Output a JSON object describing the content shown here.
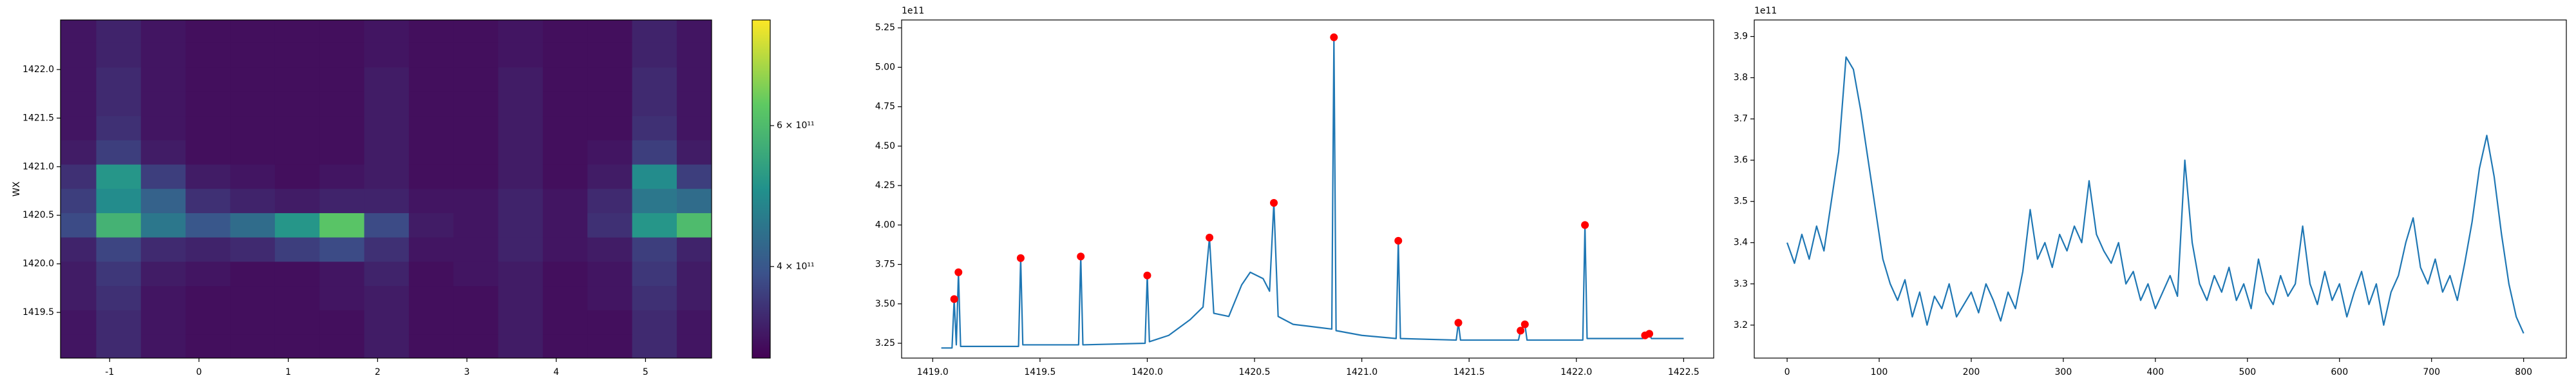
{
  "chart_data": [
    {
      "type": "heatmap",
      "ylabel": "WX",
      "cmap": "viridis",
      "xlim": [
        -1.55,
        5.74
      ],
      "ylim": [
        1419.03,
        1422.51
      ],
      "xticks": [
        -1,
        0,
        1,
        2,
        3,
        4,
        5
      ],
      "yticks": [
        1419.5,
        {
          "value": 1420,
          "label": "1420.0"
        },
        1420.5,
        {
          "value": 1421,
          "label": "1421.0"
        },
        1421.5,
        {
          "value": 1422,
          "label": "1422.0"
        }
      ],
      "x": [
        -1.4,
        -0.9,
        -0.4,
        0.1,
        0.6,
        1.1,
        1.6,
        2.1,
        2.6,
        3.1,
        3.6,
        4.1,
        4.6,
        5.1,
        5.6
      ],
      "y": [
        1419.15,
        1419.4,
        1419.65,
        1419.9,
        1420.15,
        1420.4,
        1420.65,
        1420.9,
        1421.15,
        1421.4,
        1421.65,
        1421.9,
        1422.15,
        1422.4
      ],
      "z": [
        [
          300000000000.0,
          330000000000.0,
          300000000000.0,
          290000000000.0,
          290000000000.0,
          290000000000.0,
          290000000000.0,
          310000000000.0,
          290000000000.0,
          290000000000.0,
          310000000000.0,
          290000000000.0,
          290000000000.0,
          330000000000.0,
          300000000000.0
        ],
        [
          300000000000.0,
          330000000000.0,
          300000000000.0,
          290000000000.0,
          290000000000.0,
          290000000000.0,
          290000000000.0,
          310000000000.0,
          290000000000.0,
          290000000000.0,
          310000000000.0,
          290000000000.0,
          290000000000.0,
          330000000000.0,
          300000000000.0
        ],
        [
          310000000000.0,
          340000000000.0,
          300000000000.0,
          290000000000.0,
          290000000000.0,
          290000000000.0,
          300000000000.0,
          310000000000.0,
          290000000000.0,
          290000000000.0,
          310000000000.0,
          290000000000.0,
          300000000000.0,
          340000000000.0,
          310000000000.0
        ],
        [
          310000000000.0,
          350000000000.0,
          310000000000.0,
          300000000000.0,
          290000000000.0,
          290000000000.0,
          300000000000.0,
          320000000000.0,
          290000000000.0,
          300000000000.0,
          310000000000.0,
          290000000000.0,
          300000000000.0,
          350000000000.0,
          310000000000.0
        ],
        [
          320000000000.0,
          370000000000.0,
          330000000000.0,
          320000000000.0,
          330000000000.0,
          360000000000.0,
          380000000000.0,
          340000000000.0,
          300000000000.0,
          300000000000.0,
          320000000000.0,
          300000000000.0,
          310000000000.0,
          360000000000.0,
          320000000000.0
        ],
        [
          380000000000.0,
          580000000000.0,
          460000000000.0,
          400000000000.0,
          440000000000.0,
          520000000000.0,
          620000000000.0,
          380000000000.0,
          310000000000.0,
          300000000000.0,
          320000000000.0,
          300000000000.0,
          340000000000.0,
          520000000000.0,
          600000000000.0
        ],
        [
          360000000000.0,
          500000000000.0,
          420000000000.0,
          340000000000.0,
          320000000000.0,
          310000000000.0,
          320000000000.0,
          320000000000.0,
          300000000000.0,
          300000000000.0,
          320000000000.0,
          300000000000.0,
          330000000000.0,
          460000000000.0,
          440000000000.0
        ],
        [
          340000000000.0,
          520000000000.0,
          360000000000.0,
          310000000000.0,
          300000000000.0,
          290000000000.0,
          300000000000.0,
          310000000000.0,
          290000000000.0,
          290000000000.0,
          310000000000.0,
          290000000000.0,
          310000000000.0,
          500000000000.0,
          360000000000.0
        ],
        [
          310000000000.0,
          360000000000.0,
          310000000000.0,
          290000000000.0,
          290000000000.0,
          290000000000.0,
          290000000000.0,
          310000000000.0,
          290000000000.0,
          290000000000.0,
          310000000000.0,
          290000000000.0,
          300000000000.0,
          360000000000.0,
          310000000000.0
        ],
        [
          300000000000.0,
          340000000000.0,
          300000000000.0,
          290000000000.0,
          290000000000.0,
          290000000000.0,
          290000000000.0,
          310000000000.0,
          290000000000.0,
          290000000000.0,
          310000000000.0,
          290000000000.0,
          290000000000.0,
          340000000000.0,
          300000000000.0
        ],
        [
          300000000000.0,
          330000000000.0,
          300000000000.0,
          290000000000.0,
          290000000000.0,
          290000000000.0,
          290000000000.0,
          310000000000.0,
          290000000000.0,
          290000000000.0,
          310000000000.0,
          290000000000.0,
          290000000000.0,
          330000000000.0,
          300000000000.0
        ],
        [
          300000000000.0,
          330000000000.0,
          300000000000.0,
          290000000000.0,
          290000000000.0,
          290000000000.0,
          290000000000.0,
          310000000000.0,
          290000000000.0,
          290000000000.0,
          310000000000.0,
          290000000000.0,
          290000000000.0,
          330000000000.0,
          300000000000.0
        ],
        [
          300000000000.0,
          320000000000.0,
          300000000000.0,
          290000000000.0,
          290000000000.0,
          290000000000.0,
          290000000000.0,
          300000000000.0,
          290000000000.0,
          290000000000.0,
          300000000000.0,
          290000000000.0,
          290000000000.0,
          320000000000.0,
          300000000000.0
        ],
        [
          300000000000.0,
          320000000000.0,
          300000000000.0,
          290000000000.0,
          290000000000.0,
          290000000000.0,
          290000000000.0,
          300000000000.0,
          290000000000.0,
          290000000000.0,
          300000000000.0,
          290000000000.0,
          290000000000.0,
          320000000000.0,
          300000000000.0
        ]
      ],
      "colorbar": {
        "clim": [
          270000000000.0,
          750000000000.0
        ],
        "ticks": [
          {
            "value": 400000000000.0,
            "label": "4 × 10¹¹"
          },
          {
            "value": 600000000000.0,
            "label": "6 × 10¹¹"
          }
        ]
      }
    },
    {
      "type": "line",
      "offset_text": "1e11",
      "xlim": [
        1418.855,
        1422.64
      ],
      "ylim": [
        3.156,
        5.3
      ],
      "xticks": [
        {
          "value": 1419,
          "label": "1419.0"
        },
        1419.5,
        {
          "value": 1420,
          "label": "1420.0"
        },
        1420.5,
        {
          "value": 1421,
          "label": "1421.0"
        },
        1421.5,
        {
          "value": 1422,
          "label": "1422.0"
        },
        1422.5
      ],
      "yticks": [
        3.25,
        {
          "value": 3.5,
          "label": "3.50"
        },
        3.75,
        {
          "value": 4,
          "label": "4.00"
        },
        4.25,
        {
          "value": 4.5,
          "label": "4.50"
        },
        4.75,
        {
          "value": 5,
          "label": "5.00"
        },
        5.25
      ],
      "series": [
        {
          "color": "#1f77b4",
          "x": [
            1419.04,
            1419.09,
            1419.1,
            1419.11,
            1419.12,
            1419.13,
            1419.4,
            1419.41,
            1419.42,
            1419.68,
            1419.69,
            1419.7,
            1419.99,
            1420.0,
            1420.01,
            1420.1,
            1420.2,
            1420.26,
            1420.29,
            1420.31,
            1420.38,
            1420.44,
            1420.48,
            1420.54,
            1420.57,
            1420.59,
            1420.61,
            1420.68,
            1420.8,
            1420.86,
            1420.87,
            1420.88,
            1421.0,
            1421.16,
            1421.17,
            1421.18,
            1421.44,
            1421.45,
            1421.46,
            1421.73,
            1421.74,
            1421.76,
            1421.77,
            1422.03,
            1422.04,
            1422.05,
            1422.31,
            1422.32,
            1422.34,
            1422.35,
            1422.5
          ],
          "values": [
            3.22,
            3.22,
            3.53,
            3.24,
            3.7,
            3.23,
            3.23,
            3.79,
            3.24,
            3.24,
            3.8,
            3.24,
            3.25,
            3.68,
            3.26,
            3.3,
            3.4,
            3.48,
            3.92,
            3.44,
            3.42,
            3.62,
            3.7,
            3.66,
            3.58,
            4.14,
            3.42,
            3.37,
            3.35,
            3.34,
            5.19,
            3.33,
            3.3,
            3.28,
            3.9,
            3.28,
            3.27,
            3.38,
            3.27,
            3.27,
            3.33,
            3.37,
            3.27,
            3.27,
            4.0,
            3.28,
            3.28,
            3.3,
            3.31,
            3.28,
            3.28
          ]
        },
        {
          "color": "#ff0000",
          "marker": "o",
          "x": [
            1419.1,
            1419.12,
            1419.41,
            1419.69,
            1420.0,
            1420.29,
            1420.59,
            1420.87,
            1421.17,
            1421.45,
            1421.74,
            1421.76,
            1422.04,
            1422.32,
            1422.34
          ],
          "values": [
            3.53,
            3.7,
            3.79,
            3.8,
            3.68,
            3.92,
            4.14,
            5.19,
            3.9,
            3.38,
            3.33,
            3.37,
            4.0,
            3.3,
            3.31
          ]
        }
      ]
    },
    {
      "type": "line",
      "offset_text": "1e11",
      "xlim": [
        -35.7,
        846.4
      ],
      "ylim": [
        3.12,
        3.94
      ],
      "xticks": [
        0,
        100,
        200,
        300,
        400,
        500,
        600,
        700,
        800
      ],
      "yticks": [
        3.2,
        3.3,
        3.4,
        3.5,
        3.6,
        3.7,
        3.8,
        3.9
      ],
      "series": [
        {
          "color": "#1f77b4",
          "x": [
            0,
            8,
            16,
            24,
            32,
            40,
            48,
            56,
            64,
            72,
            80,
            88,
            96,
            104,
            112,
            120,
            128,
            136,
            144,
            152,
            160,
            168,
            176,
            184,
            192,
            200,
            208,
            216,
            224,
            232,
            240,
            248,
            256,
            264,
            272,
            280,
            288,
            296,
            304,
            312,
            320,
            328,
            336,
            344,
            352,
            360,
            368,
            376,
            384,
            392,
            400,
            408,
            416,
            424,
            432,
            440,
            448,
            456,
            464,
            472,
            480,
            488,
            496,
            504,
            512,
            520,
            528,
            536,
            544,
            552,
            560,
            568,
            576,
            584,
            592,
            600,
            608,
            616,
            624,
            632,
            640,
            648,
            656,
            664,
            672,
            680,
            688,
            696,
            704,
            712,
            720,
            728,
            736,
            744,
            752,
            760,
            768,
            776,
            784,
            792,
            800
          ],
          "values": [
            3.4,
            3.35,
            3.42,
            3.36,
            3.44,
            3.38,
            3.5,
            3.62,
            3.85,
            3.82,
            3.72,
            3.6,
            3.48,
            3.36,
            3.3,
            3.26,
            3.31,
            3.22,
            3.28,
            3.2,
            3.27,
            3.24,
            3.3,
            3.22,
            3.25,
            3.28,
            3.23,
            3.3,
            3.26,
            3.21,
            3.28,
            3.24,
            3.33,
            3.48,
            3.36,
            3.4,
            3.34,
            3.42,
            3.38,
            3.44,
            3.4,
            3.55,
            3.42,
            3.38,
            3.35,
            3.4,
            3.3,
            3.33,
            3.26,
            3.3,
            3.24,
            3.28,
            3.32,
            3.27,
            3.6,
            3.4,
            3.3,
            3.26,
            3.32,
            3.28,
            3.34,
            3.26,
            3.3,
            3.24,
            3.36,
            3.28,
            3.25,
            3.32,
            3.27,
            3.3,
            3.44,
            3.3,
            3.25,
            3.33,
            3.26,
            3.3,
            3.22,
            3.28,
            3.33,
            3.25,
            3.3,
            3.2,
            3.28,
            3.32,
            3.4,
            3.46,
            3.34,
            3.3,
            3.36,
            3.28,
            3.32,
            3.26,
            3.35,
            3.45,
            3.58,
            3.66,
            3.56,
            3.42,
            3.3,
            3.22,
            3.18
          ]
        }
      ]
    }
  ]
}
